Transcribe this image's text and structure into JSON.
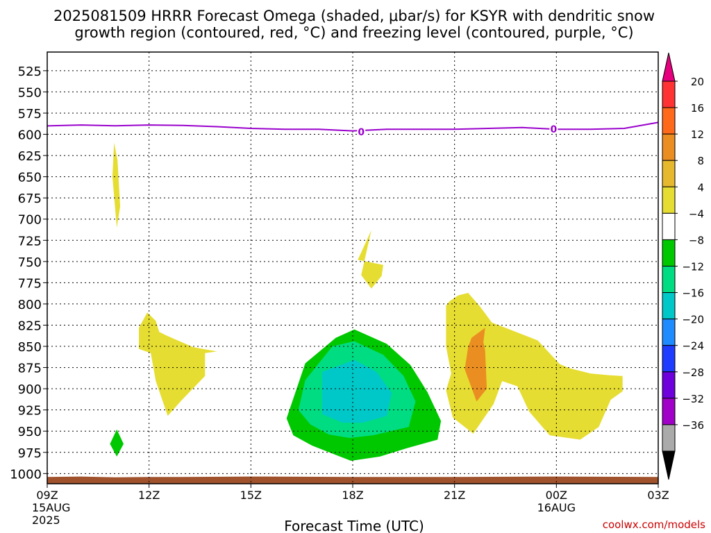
{
  "title_line1": "2025081509 HRRR Forecast Omega (shaded, μbar/s) for KSYR with dendritic snow",
  "title_line2": "growth region (contoured, red, °C) and freezing level (contoured, purple, °C)",
  "xlabel": "Forecast Time (UTC)",
  "credit": "coolwx.com/models",
  "colors": {
    "freezing_line": "#9900cc",
    "terrain": "#a0522d",
    "credit": "#cc0000"
  },
  "chart_data": {
    "type": "heatmap",
    "y_axis": {
      "label": "",
      "ylim": [
        1012,
        503
      ],
      "ticks": [
        525,
        550,
        575,
        600,
        625,
        650,
        675,
        700,
        725,
        750,
        775,
        800,
        825,
        850,
        875,
        900,
        925,
        950,
        975,
        1000
      ],
      "tick_labels": [
        "525",
        "550",
        "575",
        "600",
        "625",
        "650",
        "675",
        "700",
        "725",
        "750",
        "775",
        "800",
        "825",
        "850",
        "875",
        "900",
        "925",
        "950",
        "975",
        "1000"
      ]
    },
    "x_axis": {
      "label": "Forecast Time (UTC)",
      "xlim": [
        0,
        18
      ],
      "ticks": [
        0,
        3,
        6,
        9,
        12,
        15,
        18
      ],
      "tick_labels": [
        {
          "hour": "09Z",
          "day": "15AUG",
          "year": "2025"
        },
        {
          "hour": "12Z",
          "day": "",
          "year": ""
        },
        {
          "hour": "15Z",
          "day": "",
          "year": ""
        },
        {
          "hour": "18Z",
          "day": "",
          "year": ""
        },
        {
          "hour": "21Z",
          "day": "",
          "year": ""
        },
        {
          "hour": "00Z",
          "day": "16AUG",
          "year": ""
        },
        {
          "hour": "03Z",
          "day": "",
          "year": ""
        }
      ]
    },
    "grid": true,
    "colorbar": {
      "labels": [
        "20",
        "16",
        "12",
        "8",
        "4",
        "−4",
        "−8",
        "−12",
        "−16",
        "−20",
        "−24",
        "−28",
        "−32",
        "−36"
      ],
      "bins": [
        {
          "from": 20,
          "to": null,
          "color": "#e6007e"
        },
        {
          "from": 16,
          "to": 20,
          "color": "#ff3333"
        },
        {
          "from": 12,
          "to": 16,
          "color": "#ff6a1a"
        },
        {
          "from": 8,
          "to": 12,
          "color": "#ea8e22"
        },
        {
          "from": 4,
          "to": 8,
          "color": "#e6b82e"
        },
        {
          "from": 0,
          "to": 4,
          "color": "#e6dd32"
        },
        {
          "from": -4,
          "to": 4,
          "color": "#ffffff"
        },
        {
          "from": -8,
          "to": -4,
          "color": "#00c800"
        },
        {
          "from": -12,
          "to": -8,
          "color": "#00dc82"
        },
        {
          "from": -16,
          "to": -12,
          "color": "#00c8c8"
        },
        {
          "from": -20,
          "to": -16,
          "color": "#1e8cff"
        },
        {
          "from": -24,
          "to": -20,
          "color": "#1e3cff"
        },
        {
          "from": -28,
          "to": -24,
          "color": "#6e00dc"
        },
        {
          "from": -32,
          "to": -28,
          "color": "#a000c8"
        },
        {
          "from": -36,
          "to": -32,
          "color": "#aaaaaa"
        },
        {
          "from": null,
          "to": -36,
          "color": "#000000"
        }
      ]
    },
    "freezing_level": {
      "label": "0",
      "label_points": [
        {
          "t": 9.25,
          "p": 597
        },
        {
          "t": 14.92,
          "p": 594
        }
      ],
      "points": [
        {
          "t": 0,
          "p": 590
        },
        {
          "t": 1,
          "p": 589
        },
        {
          "t": 2,
          "p": 590
        },
        {
          "t": 3,
          "p": 589
        },
        {
          "t": 4,
          "p": 589.5
        },
        {
          "t": 5,
          "p": 591
        },
        {
          "t": 6,
          "p": 593
        },
        {
          "t": 7,
          "p": 594
        },
        {
          "t": 8,
          "p": 594
        },
        {
          "t": 9,
          "p": 596
        },
        {
          "t": 10,
          "p": 594
        },
        {
          "t": 11,
          "p": 594
        },
        {
          "t": 12,
          "p": 594
        },
        {
          "t": 13,
          "p": 593
        },
        {
          "t": 14,
          "p": 592
        },
        {
          "t": 15,
          "p": 594
        },
        {
          "t": 16,
          "p": 594
        },
        {
          "t": 17,
          "p": 593
        },
        {
          "t": 18,
          "p": 586
        }
      ]
    },
    "shaded_regions": [
      {
        "color": "#e6dd32",
        "points": [
          [
            1.97,
            610
          ],
          [
            2.07,
            630
          ],
          [
            2.15,
            685
          ],
          [
            2.05,
            710
          ],
          [
            1.92,
            650
          ]
        ]
      },
      {
        "color": "#e6dd32",
        "points": [
          [
            9.55,
            713
          ],
          [
            9.15,
            748
          ],
          [
            9.9,
            754
          ],
          [
            9.85,
            767
          ],
          [
            9.55,
            782
          ],
          [
            9.25,
            766
          ]
        ]
      },
      {
        "color": "#e6dd32",
        "points": [
          [
            2.95,
            810
          ],
          [
            2.7,
            828
          ],
          [
            2.7,
            853
          ],
          [
            3.05,
            858
          ],
          [
            3.2,
            891
          ],
          [
            3.55,
            932
          ],
          [
            3.95,
            914
          ],
          [
            4.65,
            885
          ],
          [
            4.65,
            858
          ],
          [
            5,
            856
          ],
          [
            4.3,
            851
          ],
          [
            3.5,
            837
          ],
          [
            3.3,
            833
          ],
          [
            3.2,
            820
          ]
        ]
      },
      {
        "color": "#e6dd32",
        "points": [
          [
            12.1,
            790
          ],
          [
            11.85,
            797
          ],
          [
            11.75,
            802
          ],
          [
            11.75,
            850
          ],
          [
            11.9,
            882
          ],
          [
            11.75,
            902
          ],
          [
            11.95,
            934
          ],
          [
            12.55,
            953
          ],
          [
            13.15,
            918
          ],
          [
            13.4,
            891
          ],
          [
            13.85,
            897
          ],
          [
            14.2,
            927
          ],
          [
            14.8,
            955
          ],
          [
            15.7,
            960
          ],
          [
            16.25,
            945
          ],
          [
            16.6,
            913
          ],
          [
            16.95,
            903
          ],
          [
            16.95,
            885
          ],
          [
            16.55,
            884
          ],
          [
            16,
            882
          ],
          [
            15.4,
            876
          ],
          [
            15.1,
            871
          ],
          [
            14.45,
            843
          ],
          [
            13.1,
            822
          ],
          [
            12.75,
            803
          ],
          [
            12.4,
            787
          ]
        ]
      },
      {
        "color": "#ea8e22",
        "points": [
          [
            12.9,
            828
          ],
          [
            12.85,
            845
          ],
          [
            12.9,
            855
          ],
          [
            12.95,
            900
          ],
          [
            12.65,
            915
          ],
          [
            12.3,
            877
          ],
          [
            12.4,
            851
          ],
          [
            12.5,
            840
          ]
        ]
      },
      {
        "color": "#00c800",
        "points": [
          [
            9.05,
            830
          ],
          [
            10,
            847
          ],
          [
            10.7,
            872
          ],
          [
            11.2,
            904
          ],
          [
            11.6,
            938
          ],
          [
            11.5,
            960
          ],
          [
            10.6,
            970
          ],
          [
            9.8,
            980
          ],
          [
            8.95,
            985
          ],
          [
            8.5,
            978
          ],
          [
            7.8,
            967
          ],
          [
            7.25,
            955
          ],
          [
            7.05,
            935
          ],
          [
            7.6,
            870
          ],
          [
            8.5,
            840
          ]
        ]
      },
      {
        "color": "#00dc82",
        "points": [
          [
            9.05,
            844
          ],
          [
            9.9,
            860
          ],
          [
            10.5,
            885
          ],
          [
            10.85,
            915
          ],
          [
            10.65,
            945
          ],
          [
            9.6,
            955
          ],
          [
            8.9,
            958
          ],
          [
            8.3,
            954
          ],
          [
            7.75,
            942
          ],
          [
            7.4,
            925
          ],
          [
            7.6,
            890
          ],
          [
            8.4,
            850
          ]
        ]
      },
      {
        "color": "#00c8c8",
        "points": [
          [
            9.05,
            866
          ],
          [
            9.7,
            880
          ],
          [
            10.15,
            905
          ],
          [
            10,
            932
          ],
          [
            9.3,
            940
          ],
          [
            8.7,
            940
          ],
          [
            8.1,
            930
          ],
          [
            8.1,
            880
          ]
        ]
      },
      {
        "color": "#00c800",
        "points": [
          [
            2.05,
            948
          ],
          [
            2.25,
            965
          ],
          [
            2.05,
            980
          ],
          [
            1.85,
            965
          ]
        ]
      }
    ],
    "terrain": {
      "color": "#a0522d",
      "points": [
        [
          0,
          1004
        ],
        [
          1,
          1003.5
        ],
        [
          2,
          1004.5
        ],
        [
          3,
          1004
        ],
        [
          4,
          1004
        ],
        [
          6,
          1003.5
        ],
        [
          9,
          1004
        ],
        [
          12,
          1004
        ],
        [
          15,
          1003.5
        ],
        [
          18,
          1004
        ]
      ]
    }
  }
}
